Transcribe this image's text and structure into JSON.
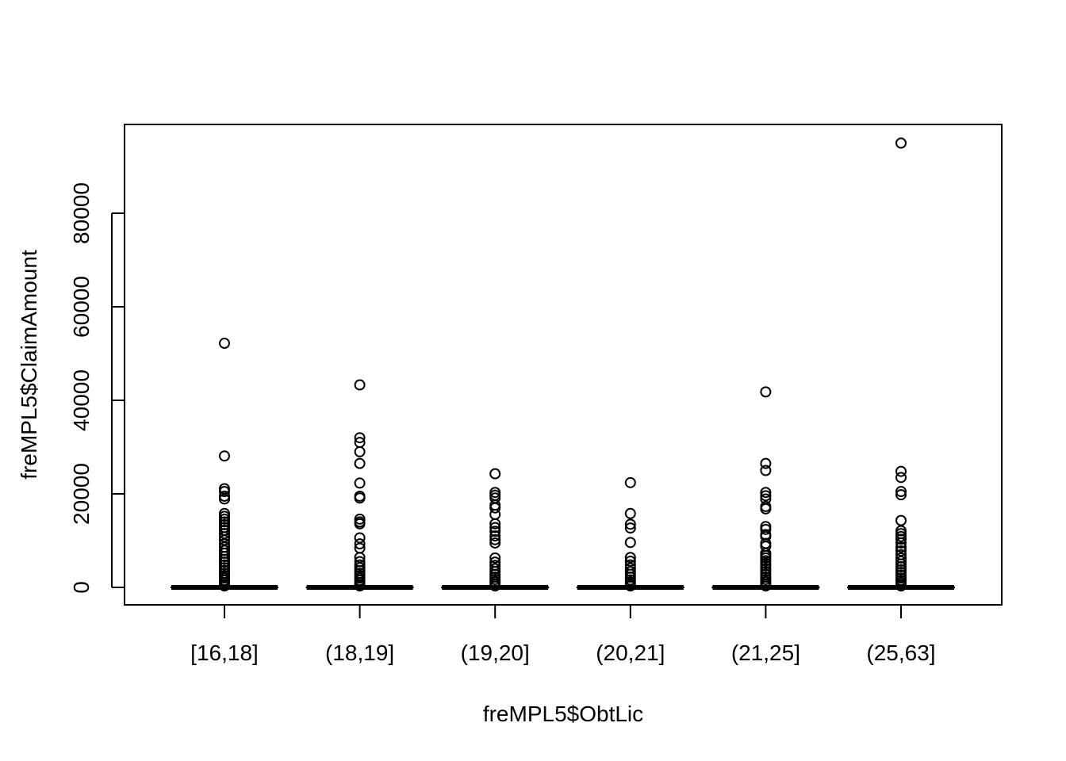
{
  "chart_data": {
    "type": "boxplot",
    "xlabel": "freMPL5$ObtLic",
    "ylabel": "freMPL5$ClaimAmount",
    "categories": [
      "[16,18]",
      "(18,19]",
      "(19,20]",
      "(20,21]",
      "(21,25]",
      "(25,63]"
    ],
    "yticks": [
      0,
      20000,
      40000,
      60000,
      80000
    ],
    "ytick_labels": [
      "0",
      "20000",
      "40000",
      "60000",
      "80000"
    ],
    "ylim": [
      -3800,
      99000
    ],
    "groups": [
      {
        "category": "[16,18]",
        "median": 0,
        "q1": 0,
        "q3": 0,
        "whisker_low": 0,
        "whisker_high": 0,
        "outliers": [
          52200,
          28100,
          21100,
          20500,
          19500,
          18900,
          15800,
          15200,
          14600,
          14000,
          13400,
          12800,
          12200,
          11500,
          10800,
          10100,
          9300,
          8600,
          7900,
          7300,
          6600,
          6000,
          5400,
          4800,
          4200,
          3600,
          3000,
          2500,
          2000,
          1500,
          1000,
          600,
          300
        ]
      },
      {
        "category": "(18,19]",
        "median": 0,
        "q1": 0,
        "q3": 0,
        "whisker_low": 0,
        "whisker_high": 0,
        "outliers": [
          43300,
          32000,
          31000,
          29000,
          26500,
          22300,
          19500,
          19100,
          14600,
          14000,
          13600,
          10600,
          9300,
          8400,
          6400,
          5500,
          4800,
          4200,
          3600,
          3000,
          2500,
          2000,
          1500,
          1000,
          600,
          300
        ]
      },
      {
        "category": "(19,20]",
        "median": 0,
        "q1": 0,
        "q3": 0,
        "whisker_low": 0,
        "whisker_high": 0,
        "outliers": [
          24300,
          20300,
          19700,
          19100,
          17600,
          17000,
          15600,
          13600,
          12800,
          12000,
          11000,
          10200,
          9500,
          6300,
          5400,
          4700,
          4000,
          3400,
          2800,
          2200,
          1700,
          1200,
          700,
          300
        ]
      },
      {
        "category": "(20,21]",
        "median": 0,
        "q1": 0,
        "q3": 0,
        "whisker_low": 0,
        "whisker_high": 0,
        "outliers": [
          22400,
          15800,
          13500,
          12700,
          9600,
          6400,
          5600,
          4800,
          4100,
          3400,
          2800,
          2200,
          1600,
          1100,
          600,
          300
        ]
      },
      {
        "category": "(21,25]",
        "median": 0,
        "q1": 0,
        "q3": 0,
        "whisker_low": 0,
        "whisker_high": 0,
        "outliers": [
          41800,
          26500,
          25000,
          20300,
          19600,
          18900,
          17300,
          16800,
          13000,
          12400,
          11300,
          10900,
          9400,
          8800,
          7300,
          6800,
          6300,
          5700,
          5100,
          4600,
          4000,
          3400,
          2800,
          2200,
          1700,
          1200,
          700,
          300
        ]
      },
      {
        "category": "(25,63]",
        "median": 0,
        "q1": 0,
        "q3": 0,
        "whisker_low": 0,
        "whisker_high": 0,
        "outliers": [
          95000,
          24800,
          23500,
          20500,
          19800,
          14300,
          12100,
          11500,
          10900,
          10300,
          9500,
          8600,
          7800,
          7000,
          6300,
          5600,
          5000,
          4400,
          3800,
          3200,
          2600,
          2000,
          1500,
          1000,
          600,
          300
        ]
      }
    ],
    "grid": false,
    "legend": "none"
  }
}
